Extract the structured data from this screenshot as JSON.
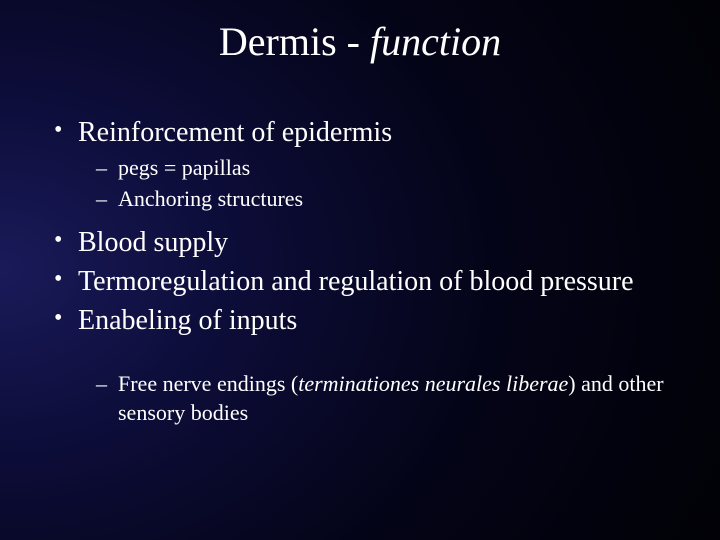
{
  "background": {
    "gradient_center": "#1a1a5a",
    "gradient_mid": "#0d0d3a",
    "gradient_outer": "#000000"
  },
  "text_color": "#ffffff",
  "font_family": "Times New Roman",
  "title": {
    "plain": "Dermis - ",
    "italic": "function",
    "fontsize": 40,
    "align": "center"
  },
  "bullets": [
    {
      "text": "Reinforcement of epidermis",
      "fontsize": 28,
      "sub": [
        {
          "text": "pegs = papillas",
          "fontsize": 22
        },
        {
          "text": "Anchoring structures",
          "fontsize": 22
        }
      ]
    },
    {
      "text": "Blood supply",
      "fontsize": 28
    },
    {
      "text": "Termoregulation and regulation of blood pressure",
      "fontsize": 28
    },
    {
      "text": "Enabeling of inputs",
      "fontsize": 28,
      "sub_after_gap": true,
      "sub": [
        {
          "pre": "Free nerve endings (",
          "italic": "terminationes neurales liberae",
          "post": ") and other sensory bodies",
          "fontsize": 22
        }
      ]
    }
  ]
}
